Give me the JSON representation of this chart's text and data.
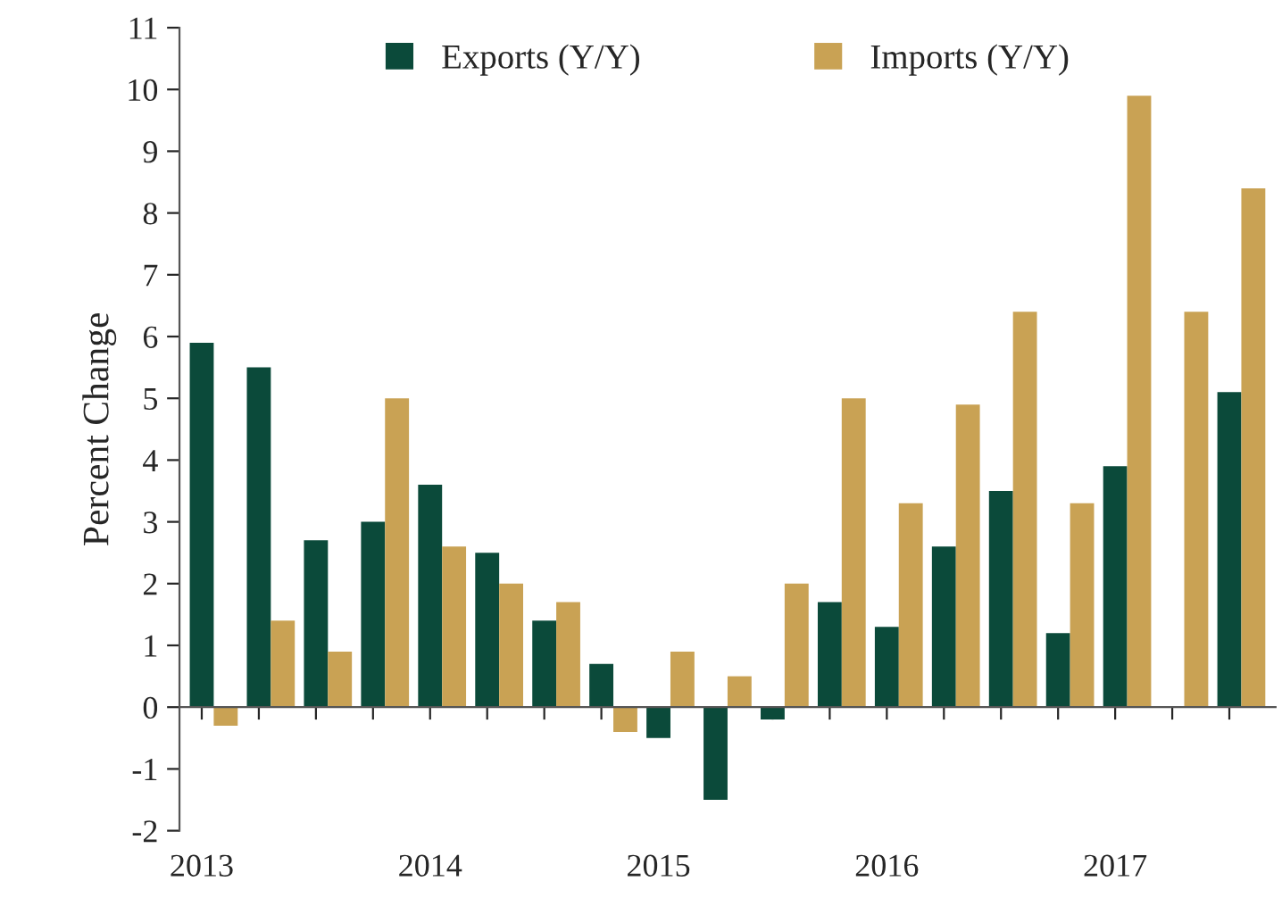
{
  "chart_data": {
    "type": "bar",
    "ylabel": "Percent Change",
    "categories": [
      "2013",
      null,
      null,
      null,
      "2014",
      null,
      null,
      null,
      "2015",
      null,
      null,
      null,
      "2016",
      null,
      null,
      null,
      "2017",
      null,
      null
    ],
    "series": [
      {
        "name": "Exports (Y/Y)",
        "color": "#0b4a3a",
        "values": [
          5.9,
          5.5,
          2.7,
          3.0,
          3.6,
          2.5,
          1.4,
          0.7,
          -0.5,
          -1.5,
          -0.2,
          1.7,
          1.3,
          2.6,
          3.5,
          1.2,
          3.9,
          null,
          5.1
        ]
      },
      {
        "name": "Imports (Y/Y)",
        "color": "#c9a254",
        "values": [
          -0.3,
          1.4,
          0.9,
          5.0,
          2.6,
          2.0,
          1.7,
          -0.4,
          0.9,
          0.5,
          2.0,
          5.0,
          3.3,
          4.9,
          6.4,
          3.3,
          9.9,
          6.4,
          8.4
        ]
      }
    ],
    "ylim": [
      -2,
      11
    ],
    "yticks": [
      -2,
      -1,
      0,
      1,
      2,
      3,
      4,
      5,
      6,
      7,
      8,
      9,
      10,
      11
    ],
    "legend": "top"
  }
}
